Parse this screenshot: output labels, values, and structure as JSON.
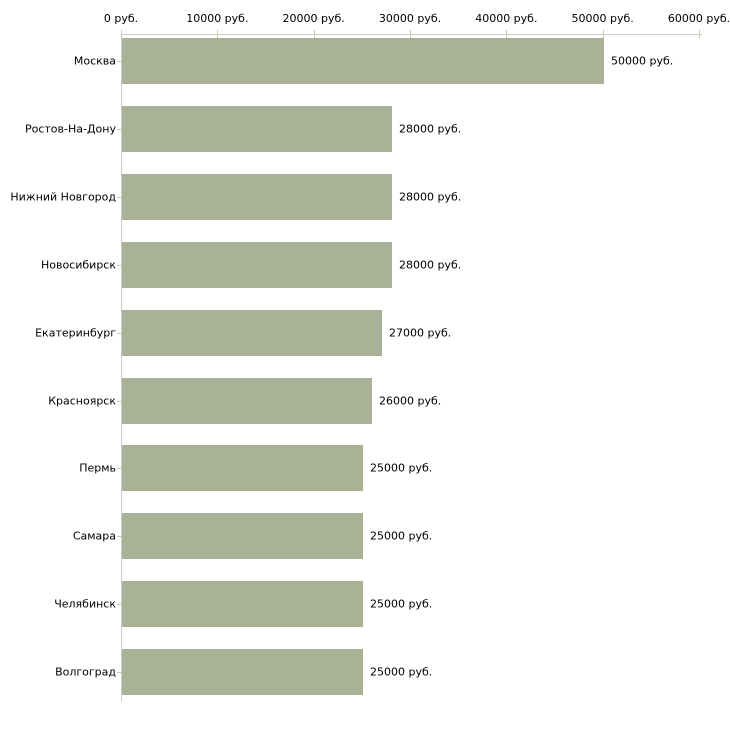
{
  "chart_data": {
    "type": "bar",
    "orientation": "horizontal",
    "title": "",
    "xlabel": "",
    "ylabel": "",
    "categories": [
      "Москва",
      "Ростов-На-Дону",
      "Нижний Новгород",
      "Новосибирск",
      "Екатеринбург",
      "Красноярск",
      "Пермь",
      "Самара",
      "Челябинск",
      "Волгоград"
    ],
    "values": [
      50000,
      28000,
      28000,
      28000,
      27000,
      26000,
      25000,
      25000,
      25000,
      25000
    ],
    "value_labels": [
      "50000 руб.",
      "28000 руб.",
      "28000 руб.",
      "28000 руб.",
      "27000 руб.",
      "26000 руб.",
      "25000 руб.",
      "25000 руб.",
      "25000 руб.",
      "25000 руб."
    ],
    "x_ticks": [
      0,
      10000,
      20000,
      30000,
      40000,
      50000,
      60000
    ],
    "x_tick_labels": [
      "0 руб.",
      "10000 руб.",
      "20000 руб.",
      "30000 руб.",
      "40000 руб.",
      "50000 руб.",
      "60000 руб."
    ],
    "xlim": [
      0,
      60000
    ],
    "grid": false,
    "legend": "none",
    "colors": {
      "bar": "#a9b197",
      "axis_line": "#cccccc",
      "tick_mark": "#c9c9a9",
      "text": "#000000",
      "background": "#ffffff"
    }
  }
}
